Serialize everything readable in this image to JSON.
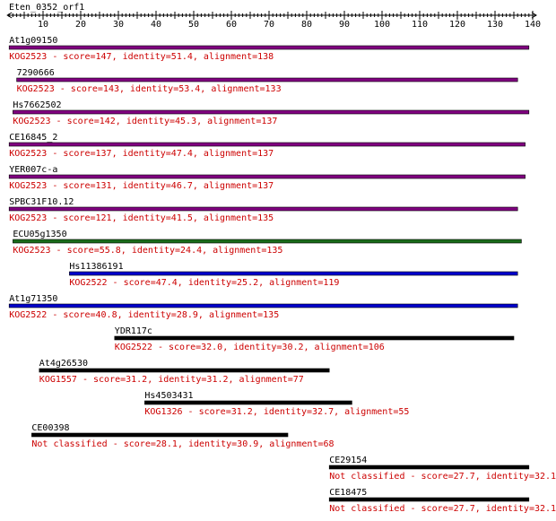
{
  "query": "Eten_0352_orf1",
  "axis": {
    "min": 1,
    "max": 140,
    "major_ticks": [
      10,
      20,
      30,
      40,
      50,
      60,
      70,
      80,
      90,
      100,
      110,
      120,
      130,
      140
    ]
  },
  "colors": {
    "KOG2523": "#800080",
    "KOG2522": "#0000cc",
    "green_hit": "#1a6b1a",
    "default": "#000000",
    "annotation": "#cc0000"
  },
  "hits": [
    {
      "name": "At1g09150",
      "desc": "KOG2523 - score=147, identity=51.4, alignment=138",
      "start": 1,
      "end": 139,
      "color": "#800080"
    },
    {
      "name": "7290666",
      "desc": "KOG2523 - score=143, identity=53.4, alignment=133",
      "start": 3,
      "end": 136,
      "color": "#800080"
    },
    {
      "name": "Hs7662502",
      "desc": "KOG2523 - score=142, identity=45.3, alignment=137",
      "start": 2,
      "end": 139,
      "color": "#800080"
    },
    {
      "name": "CE16845_2",
      "desc": "KOG2523 - score=137, identity=47.4, alignment=137",
      "start": 1,
      "end": 138,
      "color": "#800080"
    },
    {
      "name": "YER007c-a",
      "desc": "KOG2523 - score=131, identity=46.7, alignment=137",
      "start": 1,
      "end": 138,
      "color": "#800080"
    },
    {
      "name": "SPBC31F10.12",
      "desc": "KOG2523 - score=121, identity=41.5, alignment=135",
      "start": 1,
      "end": 136,
      "color": "#800080"
    },
    {
      "name": "ECU05g1350",
      "desc": "KOG2523 - score=55.8, identity=24.4, alignment=135",
      "start": 2,
      "end": 137,
      "color": "#1a6b1a"
    },
    {
      "name": "Hs11386191",
      "desc": "KOG2522 - score=47.4, identity=25.2, alignment=119",
      "start": 17,
      "end": 136,
      "color": "#0000cc"
    },
    {
      "name": "At1g71350",
      "desc": "KOG2522 - score=40.8, identity=28.9, alignment=135",
      "start": 1,
      "end": 136,
      "color": "#0000cc"
    },
    {
      "name": "YDR117c",
      "desc": "KOG2522 - score=32.0, identity=30.2, alignment=106",
      "start": 29,
      "end": 135,
      "color": "#000000"
    },
    {
      "name": "At4g26530",
      "desc": "KOG1557 - score=31.2, identity=31.2, alignment=77",
      "start": 9,
      "end": 86,
      "color": "#000000"
    },
    {
      "name": "Hs4503431",
      "desc": "KOG1326 - score=31.2, identity=32.7, alignment=55",
      "start": 37,
      "end": 92,
      "color": "#000000"
    },
    {
      "name": "CE00398",
      "desc": "Not classified - score=28.1, identity=30.9, alignment=68",
      "start": 7,
      "end": 75,
      "color": "#000000"
    },
    {
      "name": "CE29154",
      "desc": "Not classified - score=27.7, identity=32.1",
      "start": 86,
      "end": 139,
      "color": "#000000"
    },
    {
      "name": "CE18475",
      "desc": "Not classified - score=27.7, identity=32.1",
      "start": 86,
      "end": 139,
      "color": "#000000"
    }
  ]
}
